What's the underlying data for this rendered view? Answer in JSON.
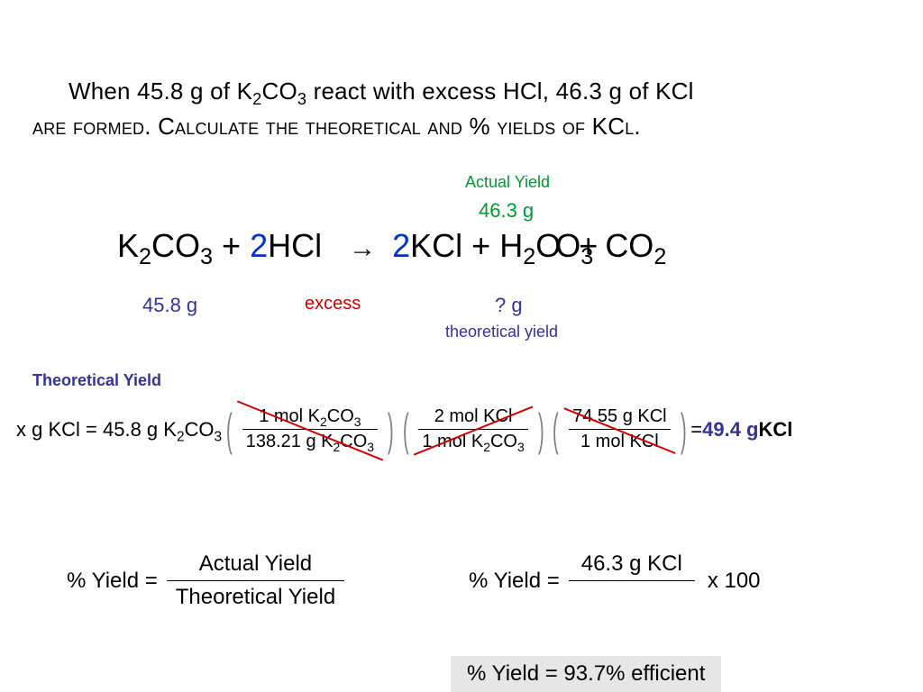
{
  "problem": {
    "line1_pre": "When ",
    "mass_k2co3": "45.8 g",
    "line1_mid": " of K",
    "line1_post": "CO",
    "line1_end": " react with excess HCl, ",
    "mass_kcl": "46.3 g",
    "line1_tail": " of KCl",
    "line2": "are formed.  Calculate the theoretical and % yields of KCl.",
    "sub2": "2",
    "sub3": "3"
  },
  "labels": {
    "actual_yield": "Actual Yield",
    "theoretical_yield": "Theoretical Yield",
    "excess": "excess",
    "unknown": "? g",
    "theoretical_yield_label": "theoretical yield"
  },
  "equation": {
    "r1": "K",
    "r1_sub1": "2",
    "r1_mid": "CO",
    "r1_sub2": "3",
    "plus": " + ",
    "coef2": "2",
    "r2": "HCl",
    "arrow": "→",
    "p1": "KCl + H",
    "p1_sub": "2",
    "p1_suffix": "O",
    "p1_over": "O",
    "p1_over_sub": "3",
    "p2": "CO",
    "p2_sub": "2",
    "plus2": "+"
  },
  "below": {
    "v1": "45.8 g",
    "v2": "excess",
    "v3": "? g"
  },
  "calc": {
    "lhs1": "x g KCl = 45.8 g K",
    "lhs_sub1": "2",
    "lhs2": "CO",
    "lhs_sub2": "3",
    "f1_num_a": "1 mol K",
    "f1_num_b": "CO",
    "f1_den_a": "138.21 g K",
    "f1_den_b": "CO",
    "f2_num": "2 mol KCl",
    "f2_den_a": "1 mol K",
    "f2_den_b": "CO",
    "f3_num": "74.55 g KCl",
    "f3_den": "1 mol KCl",
    "equals": " = ",
    "result": "49.4 g",
    "result_unit": " KCl"
  },
  "pctyield": {
    "label": "% Yield  =",
    "num": "Actual Yield",
    "den": "Theoretical Yield",
    "r_num": "46.3 g KCl",
    "r_x100": "x 100",
    "final": "% Yield  =  93.7% efficient"
  },
  "colors": {
    "green": "#009933",
    "blue": "#333399",
    "red": "#cc0000",
    "coef": "#0033cc",
    "bg_final": "#e6e6e6"
  }
}
